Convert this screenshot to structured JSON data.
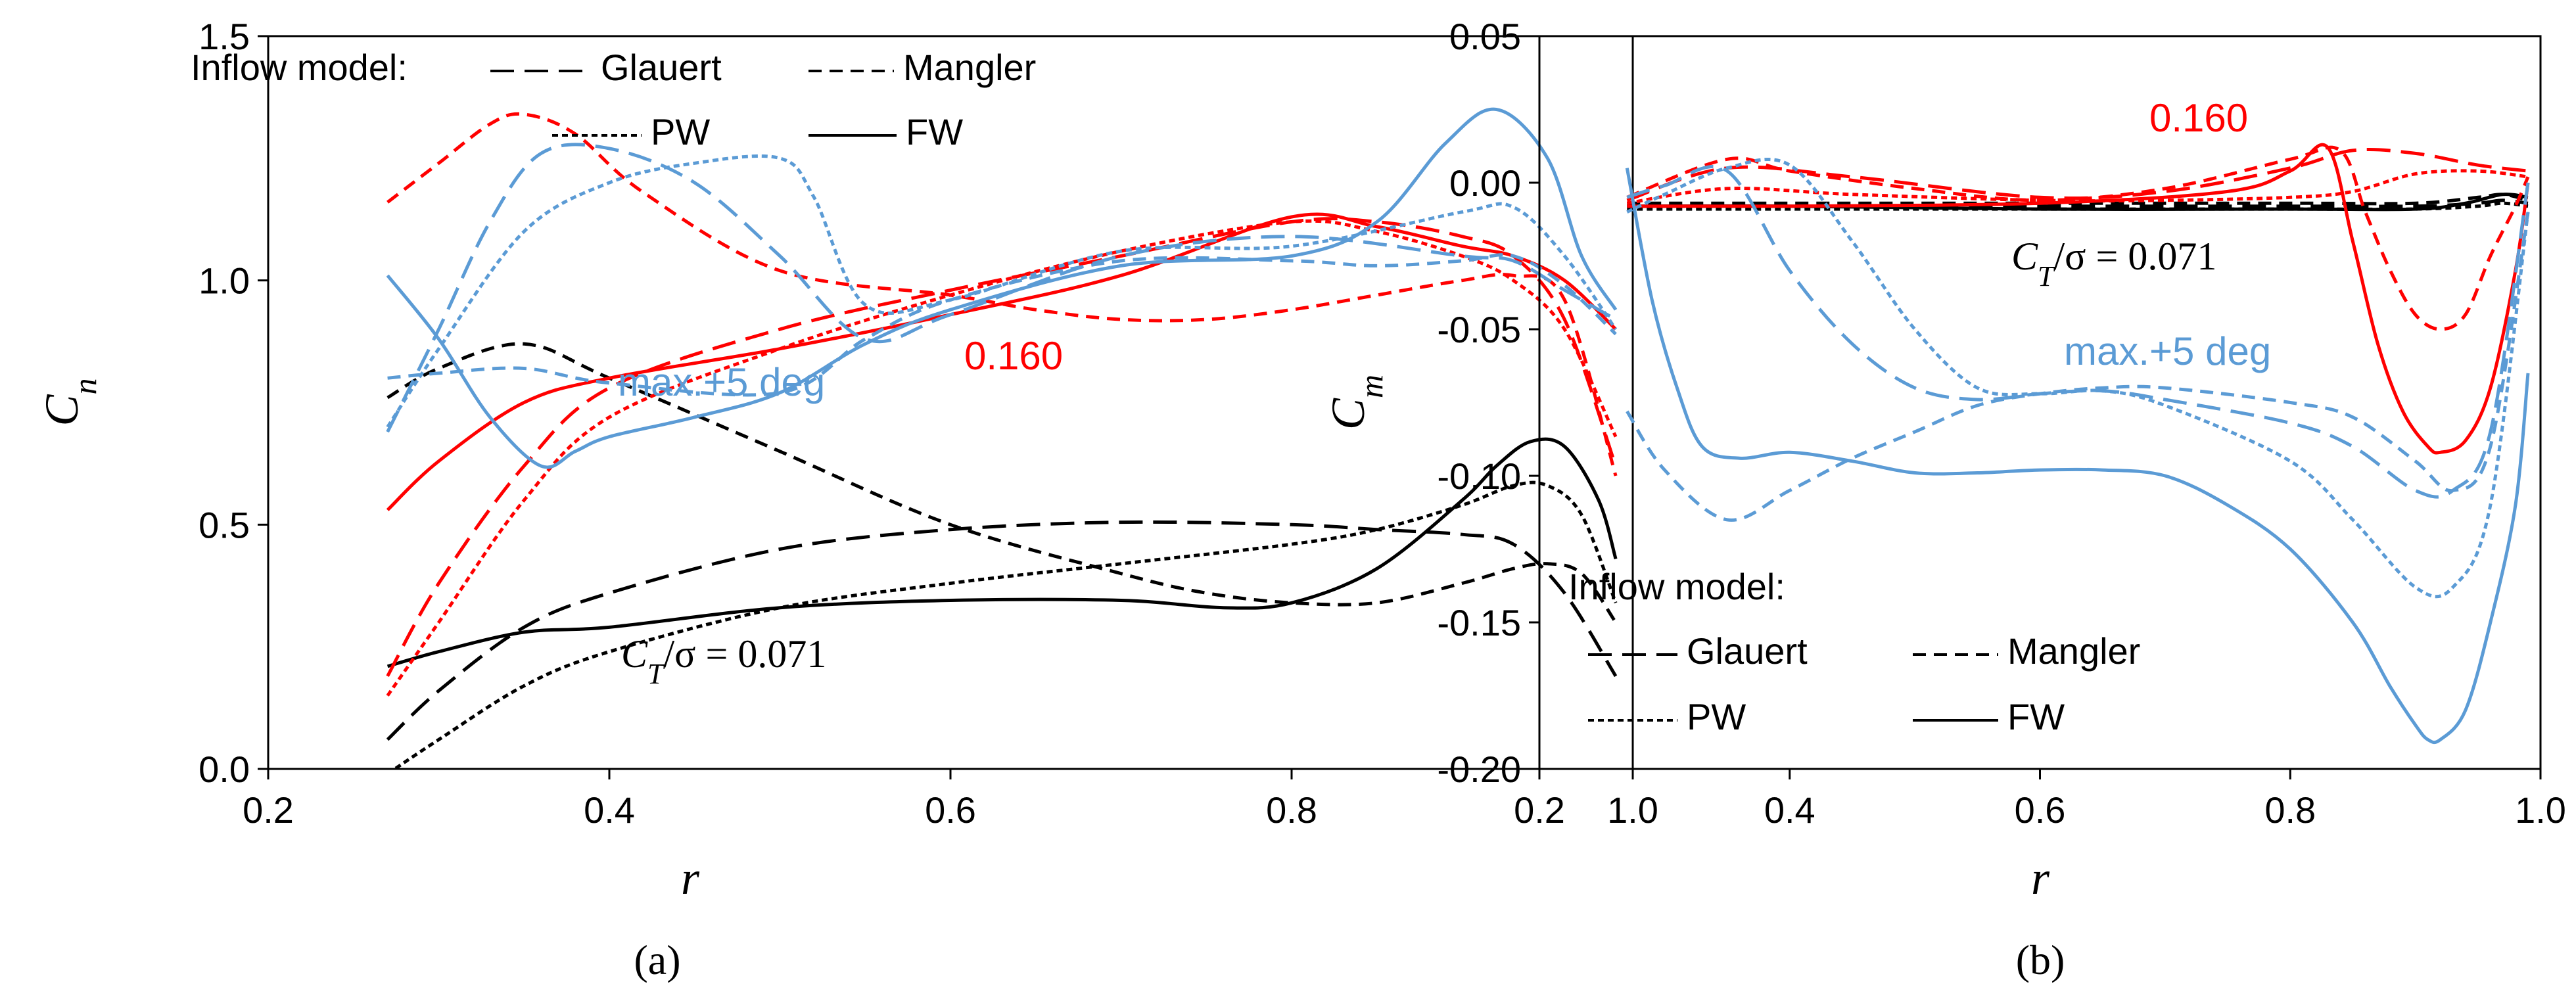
{
  "colors": {
    "red": "#ff0000",
    "blue": "#5b9bd5",
    "black": "#000000"
  },
  "chart_data": [
    {
      "type": "line",
      "panel_label": "(a)",
      "xlabel": "r",
      "ylabel": "C_n",
      "ylabel_main": "C",
      "ylabel_sub": "n",
      "xlim": [
        0.2,
        1.0
      ],
      "ylim": [
        0.0,
        1.5
      ],
      "xticks": [
        "0.2",
        "0.4",
        "0.6",
        "0.8",
        "1.0"
      ],
      "yticks": [
        "0.0",
        "0.5",
        "1.0",
        "1.5"
      ],
      "legend": {
        "title": "Inflow model:",
        "entries": [
          "Glauert",
          "Mangler",
          "PW",
          "FW"
        ],
        "placement": "top-left"
      },
      "annotations": {
        "ct_prefix": "C",
        "ct_sub": "T",
        "ct_suffix": "/σ = 0.071",
        "red_label": "0.160",
        "blue_label": "max.+5 deg"
      },
      "series": [
        {
          "name": "Glauert",
          "case": "CT/σ = 0.071",
          "color": "black",
          "dash": "long",
          "x": [
            0.27,
            0.3,
            0.35,
            0.4,
            0.5,
            0.6,
            0.7,
            0.8,
            0.85,
            0.9,
            0.93,
            0.96,
            0.99
          ],
          "y": [
            0.06,
            0.16,
            0.29,
            0.36,
            0.45,
            0.49,
            0.505,
            0.5,
            0.49,
            0.48,
            0.46,
            0.36,
            0.19
          ]
        },
        {
          "name": "Mangler",
          "case": "CT/σ = 0.071",
          "color": "black",
          "dash": "medium",
          "x": [
            0.27,
            0.3,
            0.35,
            0.4,
            0.5,
            0.6,
            0.7,
            0.75,
            0.8,
            0.85,
            0.9,
            0.93,
            0.95,
            0.97,
            0.99
          ],
          "y": [
            0.76,
            0.82,
            0.87,
            0.8,
            0.65,
            0.5,
            0.4,
            0.36,
            0.34,
            0.34,
            0.38,
            0.41,
            0.42,
            0.4,
            0.3
          ]
        },
        {
          "name": "PW",
          "case": "CT/σ = 0.071",
          "color": "black",
          "dash": "short",
          "x": [
            0.27,
            0.3,
            0.35,
            0.4,
            0.5,
            0.6,
            0.7,
            0.8,
            0.85,
            0.9,
            0.93,
            0.95,
            0.97,
            0.99
          ],
          "y": [
            -0.01,
            0.06,
            0.17,
            0.24,
            0.33,
            0.38,
            0.42,
            0.46,
            0.49,
            0.54,
            0.58,
            0.58,
            0.52,
            0.34
          ]
        },
        {
          "name": "FW",
          "case": "CT/σ = 0.071",
          "color": "black",
          "dash": "solid",
          "x": [
            0.27,
            0.3,
            0.35,
            0.4,
            0.5,
            0.6,
            0.7,
            0.76,
            0.8,
            0.85,
            0.9,
            0.92,
            0.94,
            0.96,
            0.98,
            0.99
          ],
          "y": [
            0.21,
            0.24,
            0.28,
            0.29,
            0.33,
            0.345,
            0.345,
            0.33,
            0.34,
            0.41,
            0.55,
            0.62,
            0.67,
            0.66,
            0.55,
            0.43
          ]
        },
        {
          "name": "Glauert",
          "case": "CT/σ = 0.160",
          "color": "red",
          "dash": "long",
          "x": [
            0.27,
            0.3,
            0.35,
            0.4,
            0.5,
            0.6,
            0.7,
            0.8,
            0.85,
            0.9,
            0.93,
            0.96,
            0.99
          ],
          "y": [
            0.19,
            0.38,
            0.62,
            0.78,
            0.9,
            0.98,
            1.05,
            1.12,
            1.12,
            1.09,
            1.05,
            0.92,
            0.62
          ]
        },
        {
          "name": "Mangler",
          "case": "CT/σ = 0.160",
          "color": "red",
          "dash": "medium",
          "x": [
            0.27,
            0.3,
            0.33,
            0.35,
            0.38,
            0.42,
            0.5,
            0.6,
            0.65,
            0.7,
            0.75,
            0.8,
            0.85,
            0.9,
            0.93,
            0.96,
            0.99
          ],
          "y": [
            1.16,
            1.24,
            1.32,
            1.34,
            1.3,
            1.18,
            1.02,
            0.97,
            0.94,
            0.92,
            0.92,
            0.94,
            0.97,
            1.0,
            1.01,
            0.96,
            0.6
          ]
        },
        {
          "name": "PW",
          "case": "CT/σ = 0.160",
          "color": "red",
          "dash": "short",
          "x": [
            0.27,
            0.3,
            0.35,
            0.4,
            0.5,
            0.6,
            0.7,
            0.8,
            0.85,
            0.9,
            0.93,
            0.96,
            0.99
          ],
          "y": [
            0.15,
            0.3,
            0.55,
            0.72,
            0.86,
            0.97,
            1.06,
            1.12,
            1.1,
            1.05,
            1.0,
            0.9,
            0.68
          ]
        },
        {
          "name": "FW",
          "case": "CT/σ = 0.160",
          "color": "red",
          "dash": "solid",
          "x": [
            0.27,
            0.3,
            0.35,
            0.4,
            0.5,
            0.6,
            0.7,
            0.8,
            0.85,
            0.9,
            0.93,
            0.96,
            0.99
          ],
          "y": [
            0.53,
            0.63,
            0.75,
            0.8,
            0.86,
            0.93,
            1.01,
            1.13,
            1.11,
            1.07,
            1.05,
            1.0,
            0.9
          ]
        },
        {
          "name": "Glauert",
          "case": "max.+5 deg",
          "color": "blue",
          "dash": "long",
          "x": [
            0.27,
            0.3,
            0.33,
            0.36,
            0.4,
            0.45,
            0.5,
            0.55,
            0.6,
            0.7,
            0.8,
            0.9,
            0.93,
            0.96,
            0.99
          ],
          "y": [
            0.69,
            0.9,
            1.12,
            1.26,
            1.27,
            1.2,
            1.05,
            0.88,
            0.93,
            1.05,
            1.09,
            1.05,
            1.04,
            0.98,
            0.92
          ]
        },
        {
          "name": "Mangler",
          "case": "max.+5 deg",
          "color": "blue",
          "dash": "medium",
          "x": [
            0.27,
            0.3,
            0.35,
            0.4,
            0.5,
            0.55,
            0.6,
            0.7,
            0.8,
            0.85,
            0.9,
            0.93,
            0.96,
            0.99
          ],
          "y": [
            0.8,
            0.81,
            0.82,
            0.79,
            0.77,
            0.88,
            0.96,
            1.04,
            1.04,
            1.03,
            1.04,
            1.05,
            0.99,
            0.89
          ]
        },
        {
          "name": "PW",
          "case": "max.+5 deg",
          "color": "blue",
          "dash": "short",
          "x": [
            0.27,
            0.3,
            0.35,
            0.4,
            0.45,
            0.5,
            0.52,
            0.55,
            0.6,
            0.7,
            0.8,
            0.9,
            0.93,
            0.96,
            0.99
          ],
          "y": [
            0.7,
            0.86,
            1.1,
            1.2,
            1.24,
            1.25,
            1.17,
            0.95,
            0.96,
            1.06,
            1.07,
            1.14,
            1.15,
            1.05,
            0.9
          ]
        },
        {
          "name": "FW",
          "case": "max.+5 deg",
          "color": "blue",
          "dash": "solid",
          "x": [
            0.27,
            0.3,
            0.33,
            0.36,
            0.38,
            0.4,
            0.45,
            0.5,
            0.55,
            0.6,
            0.7,
            0.8,
            0.85,
            0.89,
            0.92,
            0.95,
            0.97,
            0.99
          ],
          "y": [
            1.01,
            0.88,
            0.72,
            0.62,
            0.65,
            0.68,
            0.72,
            0.77,
            0.87,
            0.94,
            1.03,
            1.05,
            1.12,
            1.28,
            1.35,
            1.25,
            1.05,
            0.94
          ]
        }
      ]
    },
    {
      "type": "line",
      "panel_label": "(b)",
      "xlabel": "r",
      "ylabel": "C_m",
      "ylabel_main": "C",
      "ylabel_sub": "m",
      "xlim": [
        0.2,
        1.0
      ],
      "ylim": [
        -0.2,
        0.05
      ],
      "xticks": [
        "0.2",
        "0.4",
        "0.6",
        "0.8",
        "1.0"
      ],
      "yticks": [
        "0.05",
        "0.00",
        "-0.05",
        "-0.10",
        "-0.15",
        "-0.20"
      ],
      "legend": {
        "title": "Inflow model:",
        "entries": [
          "Glauert",
          "Mangler",
          "PW",
          "FW"
        ],
        "placement": "bottom-left"
      },
      "annotations": {
        "ct_prefix": "C",
        "ct_sub": "T",
        "ct_suffix": "/σ = 0.071",
        "red_label": "0.160",
        "blue_label": "max.+5 deg"
      },
      "series": [
        {
          "name": "Glauert",
          "case": "CT/σ = 0.071",
          "color": "black",
          "dash": "long",
          "x": [
            0.27,
            0.4,
            0.6,
            0.8,
            0.9,
            0.95,
            0.97,
            0.99
          ],
          "y": [
            -0.008,
            -0.008,
            -0.008,
            -0.008,
            -0.008,
            -0.007,
            -0.006,
            -0.007
          ]
        },
        {
          "name": "Mangler",
          "case": "CT/σ = 0.071",
          "color": "black",
          "dash": "medium",
          "x": [
            0.27,
            0.4,
            0.6,
            0.8,
            0.9,
            0.95,
            0.97,
            0.99
          ],
          "y": [
            -0.007,
            -0.007,
            -0.007,
            -0.007,
            -0.007,
            -0.005,
            -0.004,
            -0.006
          ]
        },
        {
          "name": "PW",
          "case": "CT/σ = 0.071",
          "color": "black",
          "dash": "short",
          "x": [
            0.27,
            0.4,
            0.6,
            0.8,
            0.9,
            0.95,
            0.97,
            0.99
          ],
          "y": [
            -0.009,
            -0.009,
            -0.009,
            -0.009,
            -0.009,
            -0.008,
            -0.007,
            -0.008
          ]
        },
        {
          "name": "FW",
          "case": "CT/σ = 0.071",
          "color": "black",
          "dash": "solid",
          "x": [
            0.27,
            0.4,
            0.6,
            0.8,
            0.9,
            0.94,
            0.97,
            0.99
          ],
          "y": [
            -0.008,
            -0.008,
            -0.009,
            -0.009,
            -0.009,
            -0.007,
            -0.004,
            -0.005
          ]
        },
        {
          "name": "Glauert",
          "case": "CT/σ = 0.160",
          "color": "red",
          "dash": "long",
          "x": [
            0.27,
            0.35,
            0.45,
            0.6,
            0.7,
            0.8,
            0.85,
            0.9,
            0.95,
            0.99
          ],
          "y": [
            -0.006,
            0.005,
            0.002,
            -0.005,
            -0.003,
            0.005,
            0.011,
            0.01,
            0.006,
            0.004
          ]
        },
        {
          "name": "Mangler",
          "case": "CT/σ = 0.160",
          "color": "red",
          "dash": "medium",
          "x": [
            0.27,
            0.35,
            0.4,
            0.5,
            0.6,
            0.7,
            0.8,
            0.84,
            0.86,
            0.88,
            0.9,
            0.92,
            0.94,
            0.96,
            0.98,
            0.99
          ],
          "y": [
            -0.005,
            0.008,
            0.004,
            -0.002,
            -0.006,
            -0.002,
            0.008,
            0.011,
            -0.01,
            -0.03,
            -0.045,
            -0.05,
            -0.045,
            -0.025,
            -0.008,
            0.002
          ]
        },
        {
          "name": "PW",
          "case": "CT/σ = 0.160",
          "color": "red",
          "dash": "short",
          "x": [
            0.27,
            0.35,
            0.45,
            0.6,
            0.7,
            0.8,
            0.85,
            0.9,
            0.95,
            0.99
          ],
          "y": [
            -0.007,
            -0.002,
            -0.004,
            -0.006,
            -0.006,
            -0.005,
            -0.003,
            0.003,
            0.004,
            0.002
          ]
        },
        {
          "name": "FW",
          "case": "CT/σ = 0.160",
          "color": "red",
          "dash": "solid",
          "x": [
            0.27,
            0.4,
            0.6,
            0.75,
            0.8,
            0.83,
            0.85,
            0.87,
            0.89,
            0.91,
            0.92,
            0.94,
            0.96,
            0.98,
            0.99
          ],
          "y": [
            -0.008,
            -0.008,
            -0.007,
            -0.003,
            0.004,
            0.012,
            -0.02,
            -0.055,
            -0.078,
            -0.09,
            -0.092,
            -0.088,
            -0.07,
            -0.03,
            0.0
          ]
        },
        {
          "name": "Glauert",
          "case": "max.+5 deg",
          "color": "blue",
          "dash": "long",
          "x": [
            0.27,
            0.3,
            0.35,
            0.4,
            0.45,
            0.5,
            0.55,
            0.6,
            0.65,
            0.7,
            0.8,
            0.85,
            0.9,
            0.93,
            0.96,
            0.99
          ],
          "y": [
            -0.005,
            -0.001,
            0.004,
            -0.03,
            -0.055,
            -0.07,
            -0.074,
            -0.072,
            -0.071,
            -0.074,
            -0.082,
            -0.09,
            -0.105,
            -0.105,
            -0.085,
            0.0
          ]
        },
        {
          "name": "Mangler",
          "case": "max.+5 deg",
          "color": "blue",
          "dash": "medium",
          "x": [
            0.27,
            0.3,
            0.35,
            0.4,
            0.45,
            0.5,
            0.55,
            0.6,
            0.65,
            0.7,
            0.8,
            0.85,
            0.9,
            0.93,
            0.96,
            0.99
          ],
          "y": [
            -0.078,
            -0.098,
            -0.115,
            -0.105,
            -0.094,
            -0.085,
            -0.076,
            -0.072,
            -0.07,
            -0.07,
            -0.075,
            -0.08,
            -0.095,
            -0.105,
            -0.09,
            -0.01
          ]
        },
        {
          "name": "PW",
          "case": "max.+5 deg",
          "color": "blue",
          "dash": "short",
          "x": [
            0.27,
            0.3,
            0.35,
            0.4,
            0.45,
            0.5,
            0.55,
            0.6,
            0.65,
            0.7,
            0.8,
            0.85,
            0.9,
            0.93,
            0.96,
            0.99
          ],
          "y": [
            -0.01,
            -0.004,
            0.005,
            0.006,
            -0.02,
            -0.05,
            -0.07,
            -0.072,
            -0.071,
            -0.076,
            -0.095,
            -0.115,
            -0.138,
            -0.138,
            -0.11,
            -0.01
          ]
        },
        {
          "name": "FW",
          "case": "max.+5 deg",
          "color": "blue",
          "dash": "solid",
          "x": [
            0.27,
            0.29,
            0.31,
            0.33,
            0.36,
            0.4,
            0.45,
            0.5,
            0.55,
            0.6,
            0.65,
            0.7,
            0.75,
            0.8,
            0.85,
            0.88,
            0.9,
            0.91,
            0.92,
            0.94,
            0.96,
            0.98,
            0.99
          ],
          "y": [
            0.005,
            -0.04,
            -0.07,
            -0.09,
            -0.094,
            -0.092,
            -0.095,
            -0.099,
            -0.099,
            -0.098,
            -0.098,
            -0.1,
            -0.11,
            -0.125,
            -0.15,
            -0.172,
            -0.185,
            -0.19,
            -0.19,
            -0.18,
            -0.15,
            -0.11,
            -0.065
          ]
        }
      ]
    }
  ]
}
